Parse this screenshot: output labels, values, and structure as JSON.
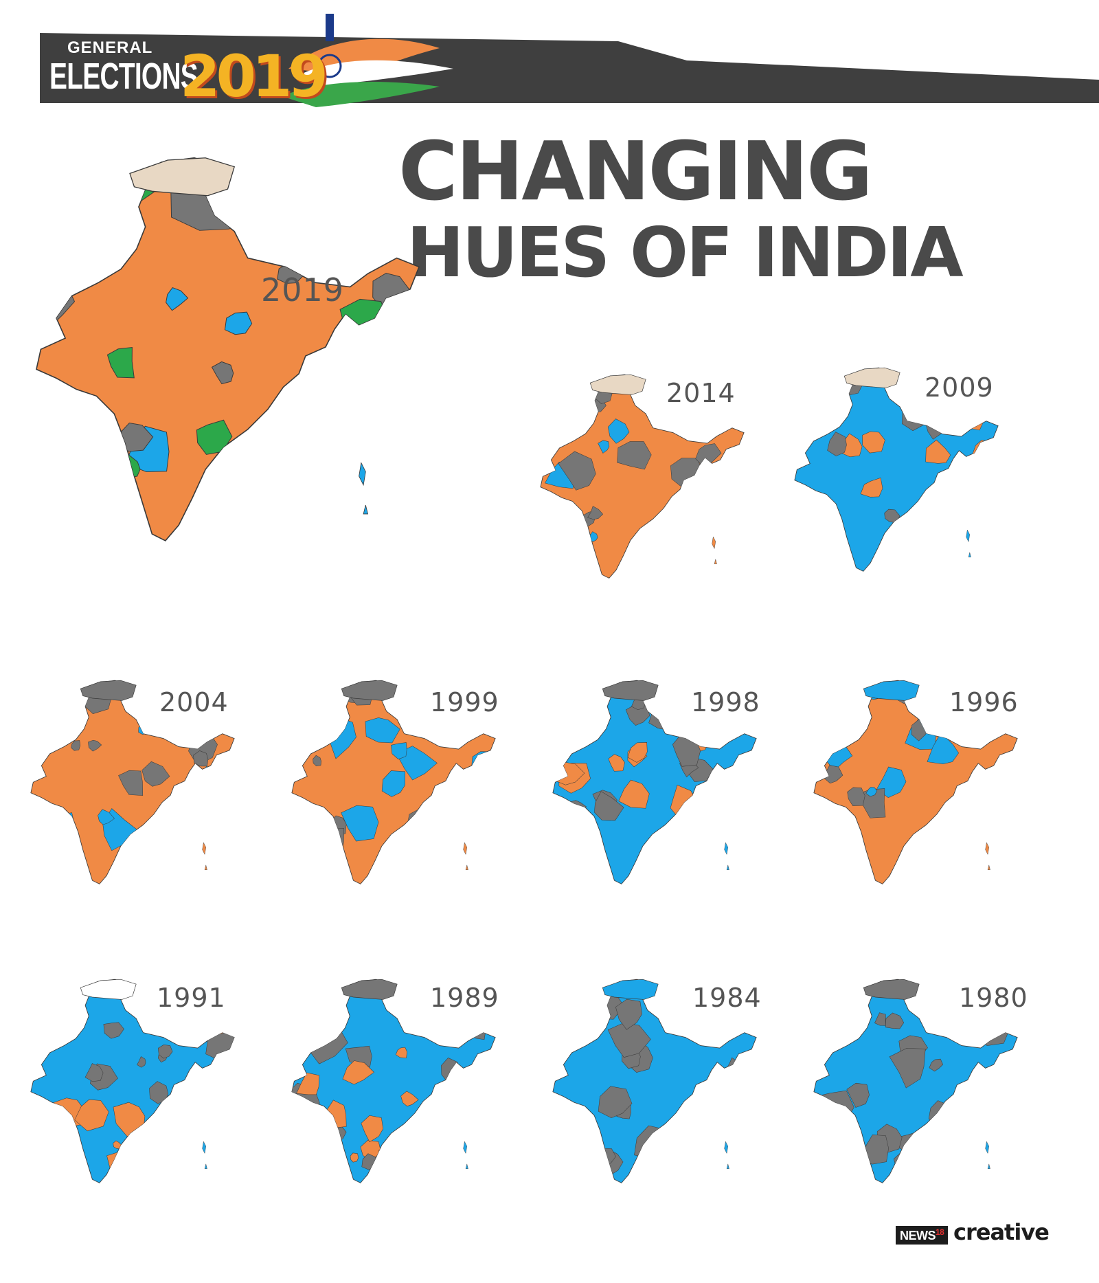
{
  "banner": {
    "line1": "GENERAL",
    "line2": "ELECTIONS",
    "year": "2019"
  },
  "title": {
    "line1": "CHANGING",
    "line2": "HUES OF INDIA"
  },
  "colors": {
    "bjp_orange": "#f08a45",
    "congress_blue": "#1ca6e8",
    "others_grey": "#767676",
    "green": "#2ca84a",
    "beige": "#e8d8c4",
    "banner_dark": "#3f3f3f"
  },
  "maps": [
    {
      "year": "2019",
      "base": "orange",
      "patches": [
        "grey",
        "blue",
        "green"
      ],
      "main": true
    },
    {
      "year": "2014",
      "base": "orange",
      "patches": [
        "grey",
        "blue"
      ]
    },
    {
      "year": "2009",
      "base": "blue",
      "patches": [
        "orange",
        "grey"
      ]
    },
    {
      "year": "2004",
      "base": "orange",
      "patches": [
        "grey",
        "blue"
      ]
    },
    {
      "year": "1999",
      "base": "orange",
      "patches": [
        "blue",
        "grey"
      ]
    },
    {
      "year": "1998",
      "base": "blue",
      "patches": [
        "orange",
        "grey"
      ]
    },
    {
      "year": "1996",
      "base": "orange",
      "patches": [
        "grey",
        "blue"
      ]
    },
    {
      "year": "1991",
      "base": "blue",
      "patches": [
        "orange",
        "grey"
      ]
    },
    {
      "year": "1989",
      "base": "blue",
      "patches": [
        "orange",
        "grey"
      ]
    },
    {
      "year": "1984",
      "base": "blue",
      "patches": [
        "grey"
      ]
    },
    {
      "year": "1980",
      "base": "blue",
      "patches": [
        "grey"
      ]
    }
  ],
  "footer": {
    "brand_news": "NEWS",
    "brand_num": "18",
    "brand_creative": "creative"
  }
}
